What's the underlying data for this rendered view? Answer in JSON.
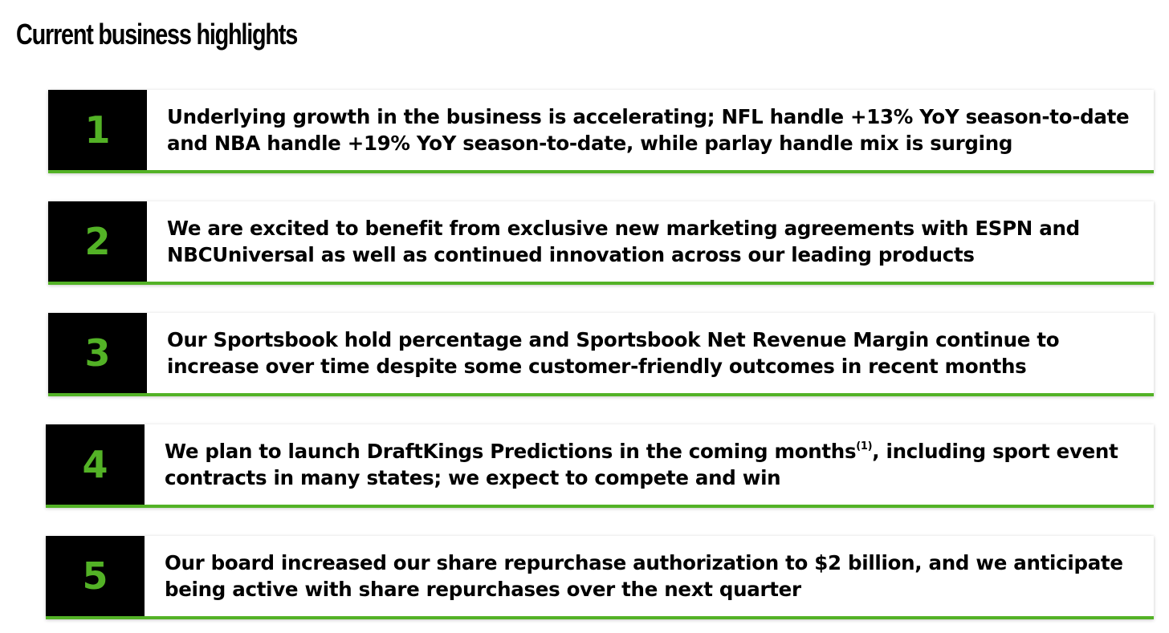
{
  "page": {
    "title": "Current business highlights"
  },
  "highlights": [
    {
      "number": "1",
      "text": "Underlying growth in the business is accelerating; NFL handle +13% YoY season-to-date and NBA handle +19% YoY season-to-date, while parlay handle mix is surging"
    },
    {
      "number": "2",
      "text": "We are excited to benefit from exclusive new marketing agreements with ESPN and NBCUniversal as well as continued innovation across our leading products"
    },
    {
      "number": "3",
      "text": "Our Sportsbook hold percentage and Sportsbook Net Revenue Margin continue to increase over time despite some customer-friendly outcomes in recent months"
    },
    {
      "number": "4",
      "text_before": "We plan to launch DraftKings Predictions in the coming months",
      "footnote": "(1)",
      "text_after": ", including sport event contracts in many states; we expect to compete and win"
    },
    {
      "number": "5",
      "text": "Our board increased our share repurchase authorization to $2 billion, and we anticipate being active with share repurchases over the next quarter"
    }
  ],
  "colors": {
    "accent_green": "#53b226",
    "number_box": "#000000",
    "text": "#000000"
  }
}
